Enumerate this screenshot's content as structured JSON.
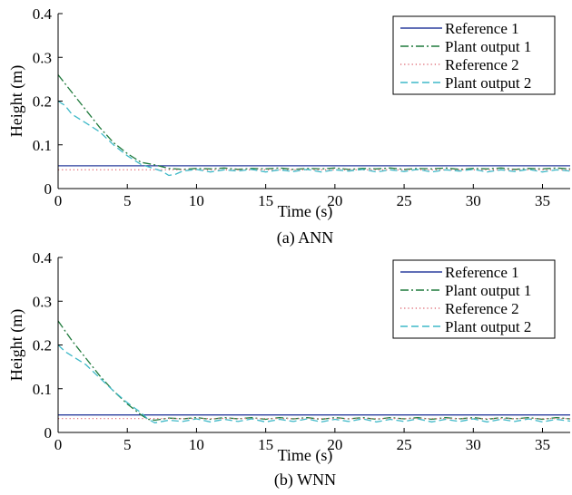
{
  "chart_data": [
    {
      "type": "line",
      "caption": "(a) ANN",
      "xlabel": "Time (s)",
      "ylabel": "Height (m)",
      "xlim": [
        0,
        37
      ],
      "ylim": [
        0,
        0.4
      ],
      "xticks": [
        0,
        5,
        10,
        15,
        20,
        25,
        30,
        35
      ],
      "yticks": [
        0,
        0.1,
        0.2,
        0.3,
        0.4
      ],
      "xtick_labels": [
        "0",
        "5",
        "10",
        "15",
        "20",
        "25",
        "30",
        "35"
      ],
      "ytick_labels": [
        "0",
        "0.1",
        "0.2",
        "0.3",
        "0.4"
      ],
      "grid": false,
      "legend_position": "top-right",
      "series": [
        {
          "name": "Reference 1",
          "color": "#2b3f9e",
          "dash": "solid",
          "x": [
            0,
            37
          ],
          "y": [
            0.052,
            0.052
          ]
        },
        {
          "name": "Plant output 1",
          "color": "#1f7a3c",
          "dash": "dashdot",
          "x": [
            0,
            1,
            2,
            3,
            4,
            5,
            6,
            7,
            8,
            9,
            10,
            11,
            12,
            13,
            14,
            15,
            16,
            17,
            18,
            19,
            20,
            21,
            22,
            23,
            24,
            25,
            26,
            27,
            28,
            29,
            30,
            31,
            32,
            33,
            34,
            35,
            36,
            37
          ],
          "y": [
            0.26,
            0.22,
            0.18,
            0.14,
            0.105,
            0.08,
            0.06,
            0.054,
            0.046,
            0.044,
            0.046,
            0.045,
            0.047,
            0.044,
            0.046,
            0.045,
            0.047,
            0.044,
            0.046,
            0.045,
            0.047,
            0.044,
            0.046,
            0.045,
            0.047,
            0.044,
            0.046,
            0.045,
            0.047,
            0.044,
            0.046,
            0.045,
            0.047,
            0.044,
            0.046,
            0.045,
            0.047,
            0.045
          ]
        },
        {
          "name": "Reference 2",
          "color": "#e0707a",
          "dash": "dotted",
          "x": [
            0,
            37
          ],
          "y": [
            0.043,
            0.043
          ]
        },
        {
          "name": "Plant output 2",
          "color": "#3fb9c8",
          "dash": "dashed",
          "x": [
            0,
            0.5,
            1,
            2,
            3,
            4,
            5,
            6,
            7,
            7.5,
            8,
            8.5,
            9,
            10,
            11,
            12,
            13,
            14,
            15,
            16,
            17,
            18,
            19,
            20,
            21,
            22,
            23,
            24,
            25,
            26,
            27,
            28,
            29,
            30,
            31,
            32,
            33,
            34,
            35,
            36,
            37
          ],
          "y": [
            0.2,
            0.19,
            0.17,
            0.15,
            0.13,
            0.1,
            0.075,
            0.055,
            0.045,
            0.04,
            0.03,
            0.033,
            0.04,
            0.044,
            0.038,
            0.043,
            0.04,
            0.044,
            0.038,
            0.043,
            0.039,
            0.044,
            0.038,
            0.043,
            0.04,
            0.044,
            0.038,
            0.043,
            0.039,
            0.044,
            0.038,
            0.043,
            0.04,
            0.044,
            0.038,
            0.043,
            0.039,
            0.044,
            0.038,
            0.043,
            0.04
          ]
        }
      ]
    },
    {
      "type": "line",
      "caption": "(b) WNN",
      "xlabel": "Time (s)",
      "ylabel": "Height (m)",
      "xlim": [
        0,
        37
      ],
      "ylim": [
        0,
        0.4
      ],
      "xticks": [
        0,
        5,
        10,
        15,
        20,
        25,
        30,
        35
      ],
      "yticks": [
        0,
        0.1,
        0.2,
        0.3,
        0.4
      ],
      "xtick_labels": [
        "0",
        "5",
        "10",
        "15",
        "20",
        "25",
        "30",
        "35"
      ],
      "ytick_labels": [
        "0",
        "0.1",
        "0.2",
        "0.3",
        "0.4"
      ],
      "grid": false,
      "legend_position": "top-right",
      "series": [
        {
          "name": "Reference 1",
          "color": "#2b3f9e",
          "dash": "solid",
          "x": [
            0,
            37
          ],
          "y": [
            0.04,
            0.04
          ]
        },
        {
          "name": "Plant output 1",
          "color": "#1f7a3c",
          "dash": "dashdot",
          "x": [
            0,
            1,
            2,
            3,
            4,
            5,
            6,
            6.5,
            7,
            8,
            9,
            10,
            11,
            12,
            13,
            14,
            15,
            16,
            17,
            18,
            19,
            20,
            21,
            22,
            23,
            24,
            25,
            26,
            27,
            28,
            29,
            30,
            31,
            32,
            33,
            34,
            35,
            36,
            37
          ],
          "y": [
            0.255,
            0.21,
            0.17,
            0.13,
            0.095,
            0.065,
            0.04,
            0.03,
            0.028,
            0.033,
            0.031,
            0.034,
            0.03,
            0.034,
            0.031,
            0.034,
            0.03,
            0.034,
            0.031,
            0.034,
            0.03,
            0.034,
            0.031,
            0.034,
            0.03,
            0.034,
            0.031,
            0.034,
            0.03,
            0.034,
            0.031,
            0.034,
            0.03,
            0.034,
            0.031,
            0.034,
            0.03,
            0.034,
            0.031
          ]
        },
        {
          "name": "Reference 2",
          "color": "#e0707a",
          "dash": "dotted",
          "x": [
            0,
            37
          ],
          "y": [
            0.032,
            0.032
          ]
        },
        {
          "name": "Plant output 2",
          "color": "#3fb9c8",
          "dash": "dashed",
          "x": [
            0,
            0.5,
            1,
            2,
            3,
            4,
            5,
            6,
            6.5,
            7,
            8,
            9,
            10,
            11,
            12,
            13,
            14,
            15,
            16,
            17,
            18,
            19,
            20,
            21,
            22,
            23,
            24,
            25,
            26,
            27,
            28,
            29,
            30,
            31,
            32,
            33,
            34,
            35,
            36,
            37
          ],
          "y": [
            0.2,
            0.185,
            0.175,
            0.155,
            0.125,
            0.095,
            0.068,
            0.045,
            0.03,
            0.022,
            0.028,
            0.025,
            0.031,
            0.024,
            0.03,
            0.025,
            0.031,
            0.024,
            0.03,
            0.025,
            0.031,
            0.024,
            0.03,
            0.025,
            0.031,
            0.024,
            0.03,
            0.025,
            0.031,
            0.024,
            0.03,
            0.025,
            0.031,
            0.024,
            0.03,
            0.025,
            0.031,
            0.024,
            0.03,
            0.026
          ]
        }
      ]
    }
  ]
}
